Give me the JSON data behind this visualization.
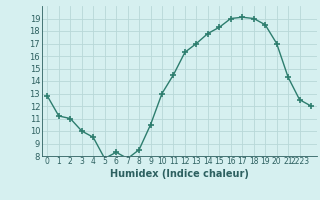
{
  "x": [
    0,
    1,
    2,
    3,
    4,
    5,
    6,
    7,
    8,
    9,
    10,
    11,
    12,
    13,
    14,
    15,
    16,
    17,
    18,
    19,
    20,
    21,
    22,
    23
  ],
  "y": [
    12.8,
    11.2,
    11.0,
    10.0,
    9.5,
    7.8,
    8.3,
    7.8,
    8.5,
    10.5,
    13.0,
    14.5,
    16.3,
    17.0,
    17.8,
    18.3,
    19.0,
    19.1,
    19.0,
    18.5,
    17.0,
    14.3,
    12.5,
    12.0
  ],
  "line_color": "#2d7d6e",
  "marker": "+",
  "marker_size": 4,
  "marker_linewidth": 1.2,
  "marker_color": "#2d7d6e",
  "bg_color": "#d6f0f0",
  "grid_color": "#b8d8d8",
  "xlabel": "Humidex (Indice chaleur)",
  "ylim": [
    8,
    20
  ],
  "xlim": [
    -0.5,
    23.5
  ],
  "yticks": [
    8,
    9,
    10,
    11,
    12,
    13,
    14,
    15,
    16,
    17,
    18,
    19
  ],
  "xtick_positions": [
    0,
    1,
    2,
    3,
    4,
    5,
    6,
    7,
    8,
    9,
    10,
    11,
    12,
    13,
    14,
    15,
    16,
    17,
    18,
    19,
    20,
    21,
    22
  ],
  "xtick_labels": [
    "0",
    "1",
    "2",
    "3",
    "4",
    "5",
    "6",
    "7",
    "8",
    "9",
    "10",
    "11",
    "12",
    "13",
    "14",
    "15",
    "16",
    "17",
    "18",
    "19",
    "20",
    "21",
    "2223"
  ],
  "line_width": 1.0,
  "xlabel_fontsize": 7,
  "ylabel_fontsize": 6,
  "xlabel_bold": true
}
